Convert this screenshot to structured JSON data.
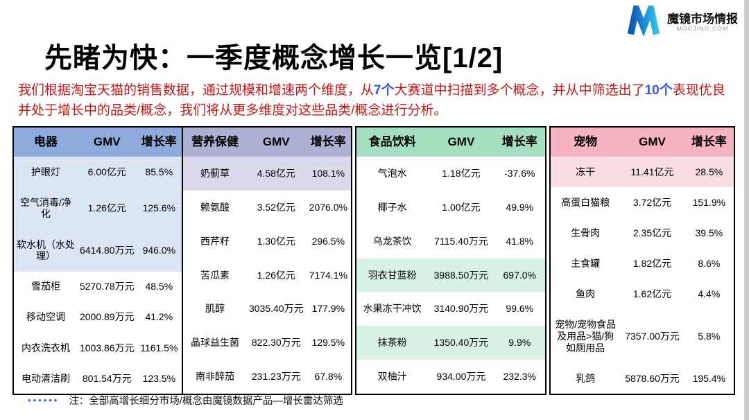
{
  "page": {
    "title": "先睹为快：一季度概念增长一览[1/2]",
    "intro": {
      "part1": "我们根据淘宝天猫的销售数据，通过规模和增速两个维度，从",
      "highlight1": "7个",
      "part2": "大赛道中扫描到多个概念，并从中筛选出了",
      "highlight2": "10个",
      "part3": "表现优良并处于增长中的品类/概念，我们将从更多维度对这些品类/概念进行分析。"
    },
    "footnote": {
      "dots": "••••••",
      "text": "注：全部高增长细分市场/概念由魔镜数据产品—增长雷达筛选"
    }
  },
  "logo": {
    "name": "魔镜市场情报",
    "domain": "MOOJING.COM"
  },
  "colors": {
    "intro_text_red": "#c01616",
    "intro_highlight_blue": "#3355f0",
    "footnote_dots_blue": "#4472c4",
    "table_border": "#000000"
  },
  "tables": [
    {
      "id": "electronics",
      "category": "电器",
      "gmv_label": "GMV",
      "rate_label": "增长率",
      "colors": {
        "header_bg": "#8FAADC",
        "row_highlight_bg": "#DBE5F4"
      },
      "rows": [
        {
          "name": "护眼灯",
          "gmv": "6.00亿元",
          "rate": "85.5%",
          "highlight": true
        },
        {
          "name": "空气消毒/净化",
          "gmv": "1.26亿元",
          "rate": "125.6%",
          "highlight": true
        },
        {
          "name": "软水机（水处理）",
          "gmv": "6414.80万元",
          "rate": "946.0%",
          "highlight": true
        },
        {
          "name": "雪茄柜",
          "gmv": "5270.78万元",
          "rate": "48.5%",
          "highlight": false
        },
        {
          "name": "移动空调",
          "gmv": "2000.89万元",
          "rate": "41.2%",
          "highlight": false
        },
        {
          "name": "内衣洗衣机",
          "gmv": "1003.86万元",
          "rate": "1161.5%",
          "highlight": false
        },
        {
          "name": "电动清洁刷",
          "gmv": "801.54万元",
          "rate": "123.5%",
          "highlight": false
        }
      ]
    },
    {
      "id": "nutrition-health",
      "category": "营养保健",
      "gmv_label": "GMV",
      "rate_label": "增长率",
      "colors": {
        "header_bg": "#AEB0D4",
        "row_highlight_bg": "#DBDAEC"
      },
      "rows": [
        {
          "name": "奶蓟草",
          "gmv": "4.58亿元",
          "rate": "108.1%",
          "highlight": true
        },
        {
          "name": "赖氨酸",
          "gmv": "3.52亿元",
          "rate": "2076.0%",
          "highlight": false
        },
        {
          "name": "西芹籽",
          "gmv": "1.30亿元",
          "rate": "296.5%",
          "highlight": false
        },
        {
          "name": "苦瓜素",
          "gmv": "1.26亿元",
          "rate": "7174.1%",
          "highlight": false
        },
        {
          "name": "肌醇",
          "gmv": "3035.40万元",
          "rate": "177.9%",
          "highlight": false
        },
        {
          "name": "晶球益生菌",
          "gmv": "822.30万元",
          "rate": "129.5%",
          "highlight": false
        },
        {
          "name": "南非醉茄",
          "gmv": "231.23万元",
          "rate": "67.8%",
          "highlight": false
        }
      ]
    },
    {
      "id": "food-beverage",
      "category": "食品饮料",
      "gmv_label": "GMV",
      "rate_label": "增长率",
      "colors": {
        "header_bg": "#A5DFBF",
        "row_highlight_bg": "#D8F2E3"
      },
      "rows": [
        {
          "name": "气泡水",
          "gmv": "1.18亿元",
          "rate": "-37.6%",
          "highlight": false
        },
        {
          "name": "椰子水",
          "gmv": "1.00亿元",
          "rate": "49.9%",
          "highlight": false
        },
        {
          "name": "乌龙茶饮",
          "gmv": "7115.40万元",
          "rate": "41.8%",
          "highlight": false
        },
        {
          "name": "羽衣甘蓝粉",
          "gmv": "3988.50万元",
          "rate": "697.0%",
          "highlight": true
        },
        {
          "name": "水果冻干冲饮",
          "gmv": "3140.90万元",
          "rate": "99.6%",
          "highlight": false
        },
        {
          "name": "抹茶粉",
          "gmv": "1350.40万元",
          "rate": "9.9%",
          "highlight": true
        },
        {
          "name": "双柚汁",
          "gmv": "934.00万元",
          "rate": "232.3%",
          "highlight": false
        }
      ]
    },
    {
      "id": "pets",
      "category": "宠物",
      "gmv_label": "GMV",
      "rate_label": "增长率",
      "colors": {
        "header_bg": "#F6B4C1",
        "row_highlight_bg": "#FADEE4"
      },
      "rows": [
        {
          "name": "冻干",
          "gmv": "11.41亿元",
          "rate": "28.5%",
          "highlight": true
        },
        {
          "name": "高蛋白猫粮",
          "gmv": "3.72亿元",
          "rate": "151.9%",
          "highlight": false
        },
        {
          "name": "生骨肉",
          "gmv": "2.35亿元",
          "rate": "39.5%",
          "highlight": false
        },
        {
          "name": "主食罐",
          "gmv": "1.82亿元",
          "rate": "8.6%",
          "highlight": false
        },
        {
          "name": "鱼肉",
          "gmv": "1.62亿元",
          "rate": "4.4%",
          "highlight": false
        },
        {
          "name": "宠物/宠物食品及用品>猫/狗如厕用品",
          "gmv": "7357.00万元",
          "rate": "5.8%",
          "highlight": false
        },
        {
          "name": "乳鸽",
          "gmv": "5878.60万元",
          "rate": "195.4%",
          "highlight": false
        }
      ]
    }
  ]
}
